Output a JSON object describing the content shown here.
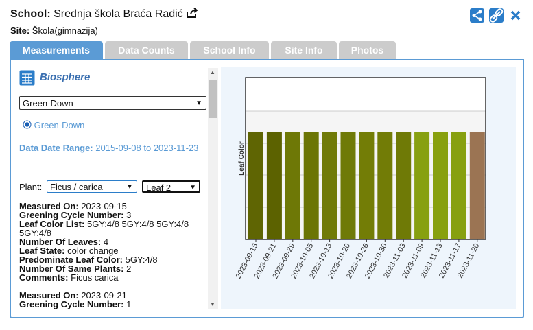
{
  "header": {
    "school_label": "School:",
    "school_name": "Srednja škola Braća Radić",
    "site_label": "Site:",
    "site_name": "Škola(gimnazija)"
  },
  "tabs": [
    "Measurements",
    "Data Counts",
    "School Info",
    "Site Info",
    "Photos"
  ],
  "panel": {
    "title": "Biosphere",
    "protocol_select": "Green-Down",
    "radio": "Green-Down",
    "date_range_label": "Data Date Range:",
    "date_range": "2015-09-08 to 2023-11-23",
    "plant_label": "Plant:",
    "plant_select": "Ficus / carica",
    "leaf_select": "Leaf 2",
    "records": [
      [
        {
          "label": "Measured On:",
          "value": "2023-09-15"
        },
        {
          "label": "Greening Cycle Number:",
          "value": "3"
        },
        {
          "label": "Leaf Color List:",
          "value": "5GY:4/8 5GY:4/8 5GY:4/8 5GY:4/8"
        },
        {
          "label": "Number Of Leaves:",
          "value": "4"
        },
        {
          "label": "Leaf State:",
          "value": "color change"
        },
        {
          "label": "Predominate Leaf Color:",
          "value": "5GY:4/8"
        },
        {
          "label": "Number Of Same Plants:",
          "value": "2"
        },
        {
          "label": "Comments:",
          "value": "Ficus carica"
        }
      ],
      [
        {
          "label": "Measured On:",
          "value": "2023-09-21"
        },
        {
          "label": "Greening Cycle Number:",
          "value": "1"
        }
      ]
    ]
  },
  "chart": {
    "type": "bar",
    "y_label": "Leaf Color",
    "categories": [
      "2023-09-15",
      "2023-09-21",
      "2023-09-29",
      "2023-10-05",
      "2023-10-13",
      "2023-10-20",
      "2023-10-26",
      "2023-10-30",
      "2023-11-03",
      "2023-11-09",
      "2023-11-13",
      "2023-11-17",
      "2023-11-20"
    ],
    "colors": [
      "#5f6503",
      "#5c6200",
      "#6e7806",
      "#6b7504",
      "#707a08",
      "#6f7a07",
      "#737d06",
      "#727c06",
      "#6f7a06",
      "#87a010",
      "#88a00f",
      "#87a010",
      "#9b7453"
    ]
  }
}
